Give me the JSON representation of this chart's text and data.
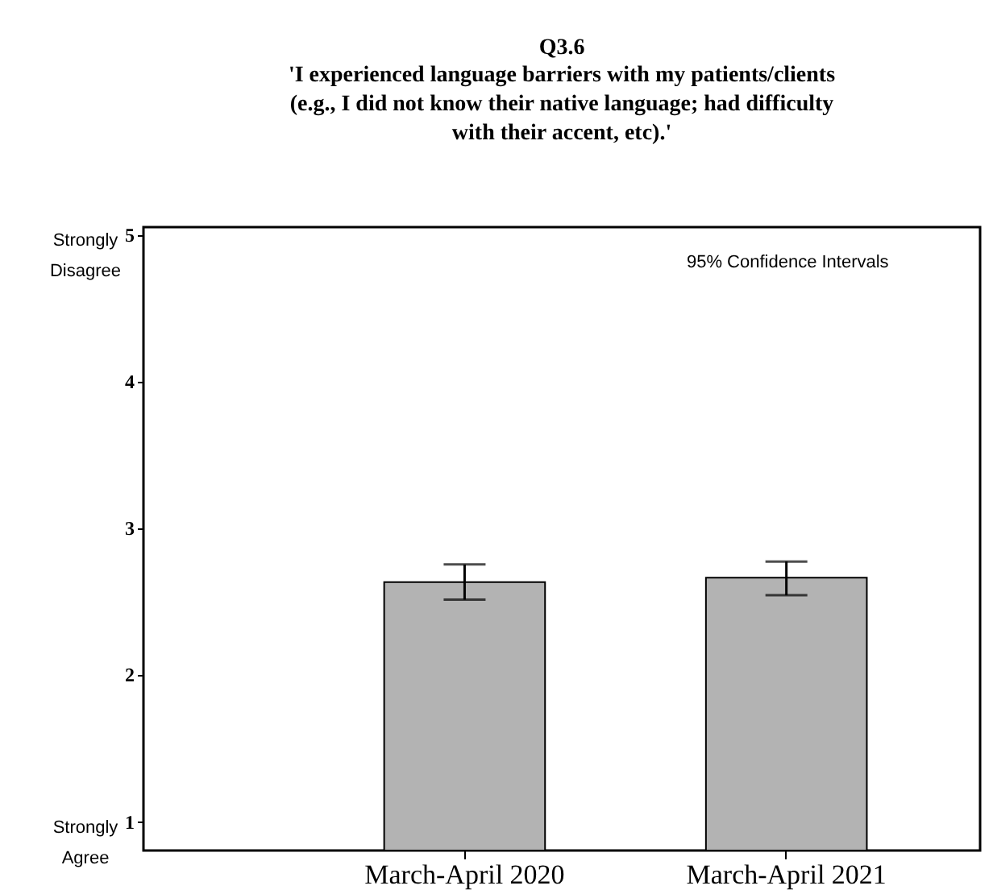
{
  "chart_data": {
    "type": "bar",
    "title": "Q3.6",
    "subtitle": "'I experienced language barriers with my patients/clients (e.g., I did not know their native language; had difficulty with their accent, etc).'",
    "categories": [
      "March-April 2020",
      "March-April 2021"
    ],
    "values": [
      2.63,
      2.66
    ],
    "errors": [
      [
        2.51,
        2.75
      ],
      [
        2.54,
        2.77
      ]
    ],
    "color": "#b3b3b3",
    "ylim": [
      0.8,
      5.05
    ],
    "yticks": [
      1,
      2,
      3,
      4,
      5
    ],
    "annotations": [
      "95% Confidence Intervals",
      "Strongly Disagree",
      "Strongly Agree"
    ],
    "grid": false
  }
}
